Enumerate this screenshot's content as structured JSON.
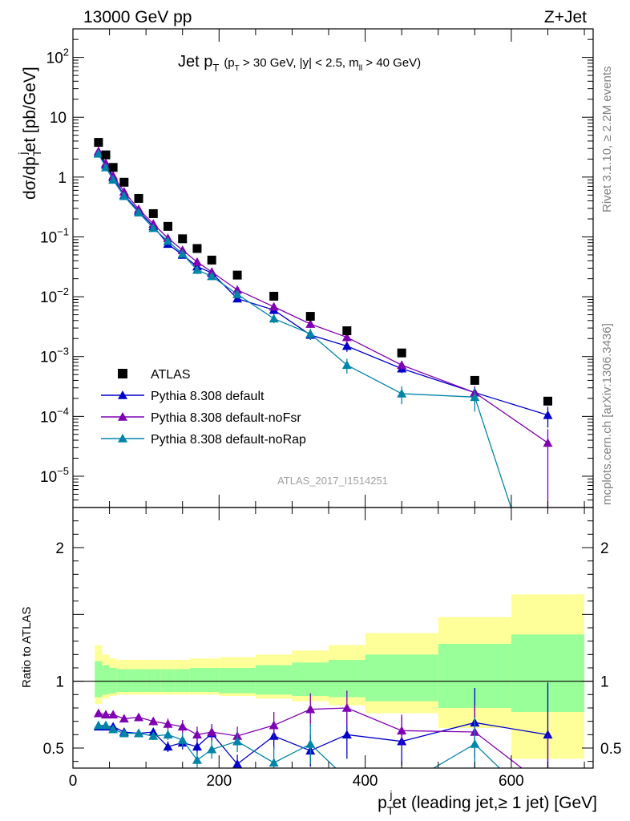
{
  "header": {
    "left": "13000 GeV pp",
    "right": "Z+Jet"
  },
  "side_labels": {
    "rivet": "Rivet 3.1.10, ≥ 2.2M events",
    "mcplots": "mcplots.cern.ch [arXiv:1306.3436]"
  },
  "plot_title": {
    "main": "Jet p",
    "main_sub": "T",
    "cut_open": "(p",
    "cut_sub": "T",
    "cut_rest": " > 30 GeV, |y| < 2.5, m",
    "cut_sub2": "ll",
    "cut_close": " > 40 GeV)"
  },
  "watermark": "ATLAS_2017_I1514251",
  "ylabel_main": {
    "a": "dσ/dp",
    "sub": "T",
    "sup": "j",
    "b": "et [pb/GeV]"
  },
  "ylabel_ratio": "Ratio to ATLAS",
  "xlabel": {
    "a": "p",
    "sub": "T",
    "sup": "j",
    "b": "et (leading jet,≥ 1 jet) [GeV]"
  },
  "legend": [
    {
      "label": "ATLAS",
      "color": "#000000",
      "marker": "square"
    },
    {
      "label": "Pythia 8.308 default",
      "color": "#0000cc",
      "marker": "triangle"
    },
    {
      "label": "Pythia 8.308 default-noFsr",
      "color": "#7f00b2",
      "marker": "triangle"
    },
    {
      "label": "Pythia 8.308 default-noRap",
      "color": "#0085a8",
      "marker": "triangle"
    }
  ],
  "chart_data": {
    "type": "scatter",
    "xlim": [
      0,
      712
    ],
    "ylim_main": [
      3e-06,
      300
    ],
    "ylim_ratio": [
      0.35,
      2.3
    ],
    "yscale_main": "log",
    "x_ticks": [
      0,
      200,
      400,
      600
    ],
    "y_ticks_main": [
      {
        "v": 1e-05,
        "b": "10",
        "e": "−5"
      },
      {
        "v": 0.0001,
        "b": "10",
        "e": "−4"
      },
      {
        "v": 0.001,
        "b": "10",
        "e": "−3"
      },
      {
        "v": 0.01,
        "b": "10",
        "e": "−2"
      },
      {
        "v": 0.1,
        "b": "10",
        "e": "−1"
      },
      {
        "v": 1,
        "b": "1",
        "e": ""
      },
      {
        "v": 10,
        "b": "10",
        "e": ""
      },
      {
        "v": 100,
        "b": "10",
        "e": "2"
      }
    ],
    "y_ticks_ratio": [
      0.5,
      1,
      2
    ],
    "bins": [
      [
        30,
        40
      ],
      [
        40,
        50
      ],
      [
        50,
        60
      ],
      [
        60,
        80
      ],
      [
        80,
        100
      ],
      [
        100,
        120
      ],
      [
        120,
        140
      ],
      [
        140,
        160
      ],
      [
        160,
        180
      ],
      [
        180,
        200
      ],
      [
        200,
        250
      ],
      [
        250,
        300
      ],
      [
        300,
        350
      ],
      [
        350,
        400
      ],
      [
        400,
        500
      ],
      [
        500,
        600
      ],
      [
        600,
        700
      ]
    ],
    "x": [
      35,
      45,
      55,
      70,
      90,
      110,
      130,
      150,
      170,
      190,
      225,
      275,
      325,
      375,
      450,
      550,
      650
    ],
    "atlas": [
      3.8,
      2.35,
      1.45,
      0.82,
      0.44,
      0.245,
      0.15,
      0.093,
      0.064,
      0.041,
      0.023,
      0.0102,
      0.0047,
      0.0027,
      0.00115,
      0.0004,
      0.00018
    ],
    "ratio_band_stat": [
      [
        0.88,
        1.15
      ],
      [
        0.9,
        1.12
      ],
      [
        0.91,
        1.1
      ],
      [
        0.92,
        1.09
      ],
      [
        0.92,
        1.09
      ],
      [
        0.92,
        1.09
      ],
      [
        0.92,
        1.09
      ],
      [
        0.92,
        1.09
      ],
      [
        0.92,
        1.1
      ],
      [
        0.92,
        1.1
      ],
      [
        0.91,
        1.1
      ],
      [
        0.9,
        1.12
      ],
      [
        0.89,
        1.14
      ],
      [
        0.88,
        1.16
      ],
      [
        0.85,
        1.2
      ],
      [
        0.8,
        1.28
      ],
      [
        0.77,
        1.35
      ]
    ],
    "ratio_band_total": [
      [
        0.83,
        1.27
      ],
      [
        0.87,
        1.2
      ],
      [
        0.89,
        1.17
      ],
      [
        0.9,
        1.16
      ],
      [
        0.9,
        1.16
      ],
      [
        0.9,
        1.16
      ],
      [
        0.9,
        1.16
      ],
      [
        0.9,
        1.16
      ],
      [
        0.9,
        1.17
      ],
      [
        0.9,
        1.17
      ],
      [
        0.89,
        1.18
      ],
      [
        0.87,
        1.2
      ],
      [
        0.85,
        1.23
      ],
      [
        0.82,
        1.27
      ],
      [
        0.76,
        1.36
      ],
      [
        0.65,
        1.48
      ],
      [
        0.42,
        1.65
      ]
    ],
    "series": [
      {
        "name": "Pythia 8.308 default",
        "color": "#0000cc",
        "values": [
          2.55,
          1.6,
          0.98,
          0.5,
          0.27,
          0.15,
          0.076,
          0.05,
          0.032,
          0.025,
          0.0093,
          0.006,
          0.0023,
          0.0015,
          0.00063,
          0.00025,
          0.000105
        ],
        "errlo": [
          0.1,
          0.07,
          0.05,
          0.03,
          0.02,
          0.012,
          0.007,
          0.005,
          0.004,
          0.003,
          0.001,
          0.0009,
          0.0004,
          0.0003,
          0.0001,
          6e-05,
          4e-05
        ],
        "errhi": [
          0.1,
          0.07,
          0.05,
          0.03,
          0.02,
          0.012,
          0.007,
          0.005,
          0.004,
          0.003,
          0.001,
          0.0009,
          0.0004,
          0.0003,
          0.0001,
          6e-05,
          4e-05
        ],
        "ratio": [
          0.66,
          0.66,
          0.66,
          0.62,
          0.61,
          0.62,
          0.51,
          0.54,
          0.51,
          0.61,
          0.38,
          0.59,
          0.48,
          0.6,
          0.55,
          0.69,
          0.6
        ],
        "ratio_err": [
          0.02,
          0.02,
          0.02,
          0.02,
          0.02,
          0.03,
          0.04,
          0.05,
          0.06,
          0.06,
          0.07,
          0.1,
          0.12,
          0.18,
          0.18,
          0.26,
          0.39
        ]
      },
      {
        "name": "Pythia 8.308 default-noFsr",
        "color": "#7f00b2",
        "values": [
          2.7,
          1.7,
          1.05,
          0.57,
          0.29,
          0.165,
          0.095,
          0.06,
          0.038,
          0.026,
          0.013,
          0.0068,
          0.0035,
          0.0021,
          0.00072,
          0.00025,
          3.6e-05
        ],
        "errlo": [
          0.1,
          0.07,
          0.05,
          0.03,
          0.02,
          0.012,
          0.008,
          0.006,
          0.004,
          0.003,
          0.0012,
          0.001,
          0.0005,
          0.0004,
          0.00012,
          7e-05,
          3.4e-05
        ],
        "errhi": [
          0.1,
          0.07,
          0.05,
          0.03,
          0.02,
          0.012,
          0.008,
          0.006,
          0.004,
          0.003,
          0.0012,
          0.001,
          0.0005,
          0.0004,
          0.00012,
          7e-05,
          2.5e-05
        ],
        "ratio": [
          0.76,
          0.75,
          0.75,
          0.72,
          0.73,
          0.7,
          0.68,
          0.66,
          0.6,
          0.62,
          0.59,
          0.67,
          0.79,
          0.8,
          0.63,
          0.62,
          0.2
        ],
        "ratio_err": [
          0.02,
          0.02,
          0.02,
          0.02,
          0.02,
          0.03,
          0.04,
          0.05,
          0.06,
          0.06,
          0.07,
          0.1,
          0.12,
          0.13,
          0.12,
          0.2,
          0.4
        ]
      },
      {
        "name": "Pythia 8.308 default-noRap",
        "color": "#0085a8",
        "values": [
          2.45,
          1.45,
          0.9,
          0.48,
          0.255,
          0.14,
          0.085,
          0.052,
          0.028,
          0.022,
          0.011,
          0.0043,
          0.0024,
          0.00072,
          0.00024,
          0.00021,
          4e-08
        ],
        "errlo": [
          0.1,
          0.07,
          0.05,
          0.03,
          0.02,
          0.012,
          0.007,
          0.005,
          0.004,
          0.003,
          0.0012,
          0.0007,
          0.0005,
          0.0002,
          8e-05,
          9e-05,
          0
        ],
        "errhi": [
          0.1,
          0.07,
          0.05,
          0.03,
          0.02,
          0.012,
          0.007,
          0.005,
          0.004,
          0.003,
          0.0012,
          0.0007,
          0.0005,
          0.0002,
          8e-05,
          9e-05,
          0
        ],
        "ratio": [
          0.67,
          0.67,
          0.64,
          0.61,
          0.61,
          0.59,
          0.6,
          0.56,
          0.41,
          0.49,
          0.55,
          0.39,
          0.53,
          0.27,
          0.21,
          0.53,
          0.0
        ],
        "ratio_err": [
          0.02,
          0.02,
          0.02,
          0.02,
          0.02,
          0.03,
          0.04,
          0.05,
          0.06,
          0.07,
          0.08,
          0.12,
          0.15,
          0.07,
          0.06,
          0.2,
          0.0
        ]
      }
    ]
  }
}
